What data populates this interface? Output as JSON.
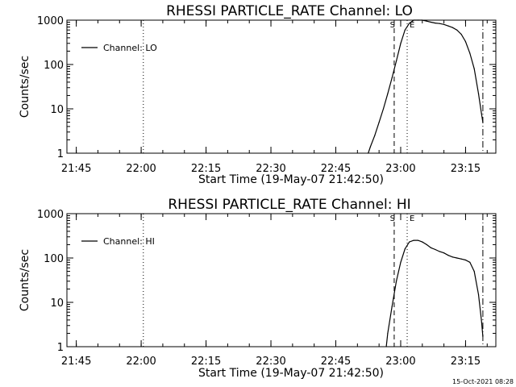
{
  "footer": {
    "timestamp": "15-Oct-2021 08:28"
  },
  "chart_data": [
    {
      "type": "line",
      "title": "RHESSI PARTICLE_RATE Channel: LO",
      "xlabel": "Start Time (19-May-07 21:42:50)",
      "ylabel": "Counts/sec",
      "y_scale": "log",
      "ylim": [
        1,
        1000
      ],
      "xlim": [
        "21:42:50",
        "23:22:00"
      ],
      "x_ticks": [
        "21:45",
        "22:00",
        "22:15",
        "22:30",
        "22:45",
        "23:00",
        "23:15"
      ],
      "y_ticks": [
        "1",
        "10",
        "100",
        "1000"
      ],
      "legend": {
        "label": "Channel: LO",
        "position": "top-left"
      },
      "markers": [
        {
          "time": "22:00:30",
          "style": "dotted",
          "label": ""
        },
        {
          "time": "22:58:30",
          "style": "dashed",
          "label": "S"
        },
        {
          "time": "23:01:30",
          "style": "dotted",
          "label": "E"
        },
        {
          "time": "23:19:00",
          "style": "dash-dot",
          "label": ""
        }
      ],
      "series": [
        {
          "name": "Channel: LO",
          "x": [
            "22:52:30",
            "22:53:00",
            "22:54:00",
            "22:55:00",
            "22:56:00",
            "22:57:00",
            "22:58:00",
            "22:59:00",
            "23:00:00",
            "23:01:00",
            "23:02:00",
            "23:03:00",
            "23:04:00",
            "23:05:00",
            "23:06:00",
            "23:07:00",
            "23:08:00",
            "23:09:00",
            "23:10:00",
            "23:11:00",
            "23:12:00",
            "23:13:00",
            "23:14:00",
            "23:15:00",
            "23:16:00",
            "23:17:00",
            "23:18:00",
            "23:18:40",
            "23:19:00"
          ],
          "values": [
            1,
            1.4,
            2.5,
            5,
            10,
            22,
            50,
            120,
            300,
            600,
            850,
            1000,
            1000,
            1000,
            950,
            900,
            860,
            840,
            800,
            740,
            680,
            600,
            480,
            330,
            180,
            80,
            22,
            8,
            5
          ]
        }
      ]
    },
    {
      "type": "line",
      "title": "RHESSI PARTICLE_RATE Channel: HI",
      "xlabel": "Start Time (19-May-07 21:42:50)",
      "ylabel": "Counts/sec",
      "y_scale": "log",
      "ylim": [
        1,
        1000
      ],
      "xlim": [
        "21:42:50",
        "23:22:00"
      ],
      "x_ticks": [
        "21:45",
        "22:00",
        "22:15",
        "22:30",
        "22:45",
        "23:00",
        "23:15"
      ],
      "y_ticks": [
        "1",
        "10",
        "100",
        "1000"
      ],
      "legend": {
        "label": "Channel: HI",
        "position": "top-left"
      },
      "markers": [
        {
          "time": "22:00:30",
          "style": "dotted",
          "label": ""
        },
        {
          "time": "22:58:30",
          "style": "dashed",
          "label": "S"
        },
        {
          "time": "23:01:30",
          "style": "dotted",
          "label": "E"
        },
        {
          "time": "23:19:00",
          "style": "dash-dot",
          "label": ""
        }
      ],
      "series": [
        {
          "name": "Channel: HI",
          "x": [
            "22:56:40",
            "22:57:00",
            "22:58:00",
            "22:59:00",
            "23:00:00",
            "23:01:00",
            "23:02:00",
            "23:03:00",
            "23:04:00",
            "23:05:00",
            "23:06:00",
            "23:07:00",
            "23:08:00",
            "23:09:00",
            "23:10:00",
            "23:11:00",
            "23:12:00",
            "23:13:00",
            "23:14:00",
            "23:15:00",
            "23:16:00",
            "23:17:00",
            "23:18:00",
            "23:18:40",
            "23:19:00"
          ],
          "values": [
            1,
            2,
            8,
            30,
            80,
            160,
            230,
            250,
            250,
            230,
            200,
            170,
            155,
            140,
            130,
            115,
            105,
            100,
            95,
            90,
            80,
            50,
            15,
            4,
            1.7
          ]
        }
      ]
    }
  ]
}
